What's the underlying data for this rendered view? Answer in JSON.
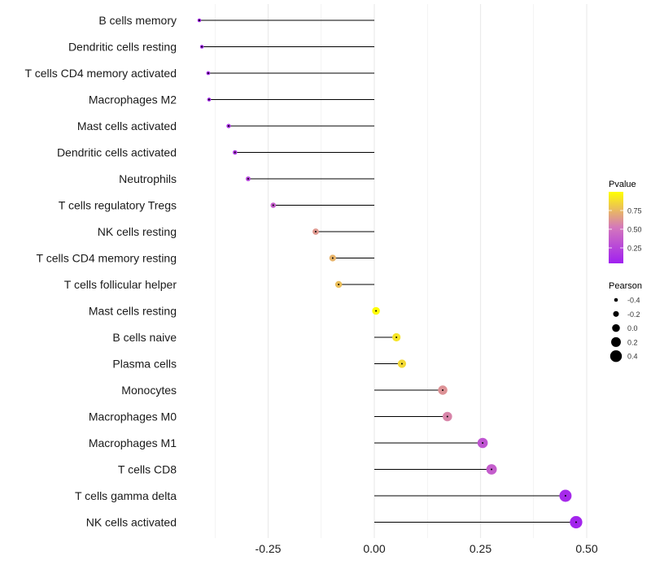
{
  "chart_data": {
    "type": "lollipop",
    "title": "",
    "xlabel": "",
    "ylabel": "",
    "xlim": [
      -0.44,
      0.52
    ],
    "x_ticks": [
      -0.25,
      0.0,
      0.25,
      0.5
    ],
    "x_tick_labels": [
      "-0.25",
      "0.00",
      "0.25",
      "0.50"
    ],
    "grid": true,
    "categories": [
      "B cells memory",
      "Dendritic cells resting",
      "T cells CD4 memory activated",
      "Macrophages M2",
      "Mast cells activated",
      "Dendritic cells activated",
      "Neutrophils",
      "T cells regulatory  Tregs",
      "NK cells resting",
      "T cells CD4 memory resting",
      "T cells follicular helper",
      "Mast cells resting",
      "B cells naive",
      "Plasma cells",
      "Monocytes",
      "Macrophages M0",
      "Macrophages M1",
      "T cells CD8",
      "T cells gamma delta",
      "NK cells activated"
    ],
    "pearson": [
      -0.412,
      -0.406,
      -0.391,
      -0.389,
      -0.343,
      -0.328,
      -0.297,
      -0.238,
      -0.138,
      -0.098,
      -0.084,
      0.004,
      0.052,
      0.065,
      0.161,
      0.172,
      0.255,
      0.276,
      0.45,
      0.475
    ],
    "pvalue": [
      0.02,
      0.03,
      0.05,
      0.05,
      0.1,
      0.13,
      0.2,
      0.35,
      0.62,
      0.72,
      0.76,
      0.99,
      0.9,
      0.86,
      0.6,
      0.55,
      0.3,
      0.35,
      0.06,
      0.03
    ],
    "legend_color": {
      "title": "Pvalue",
      "ticks": [
        0.25,
        0.5,
        0.75
      ],
      "tick_labels": [
        "0.25",
        "0.50",
        "0.75"
      ],
      "low": "#A020F0",
      "mid": "#D477BC",
      "high": "#FFFF00",
      "position": "right"
    },
    "legend_size": {
      "title": "Pearson",
      "values": [
        -0.4,
        -0.2,
        0.0,
        0.2,
        0.4
      ],
      "labels": [
        "-0.4",
        "-0.2",
        "0.0",
        "0.2",
        "0.4"
      ],
      "position": "right"
    }
  }
}
